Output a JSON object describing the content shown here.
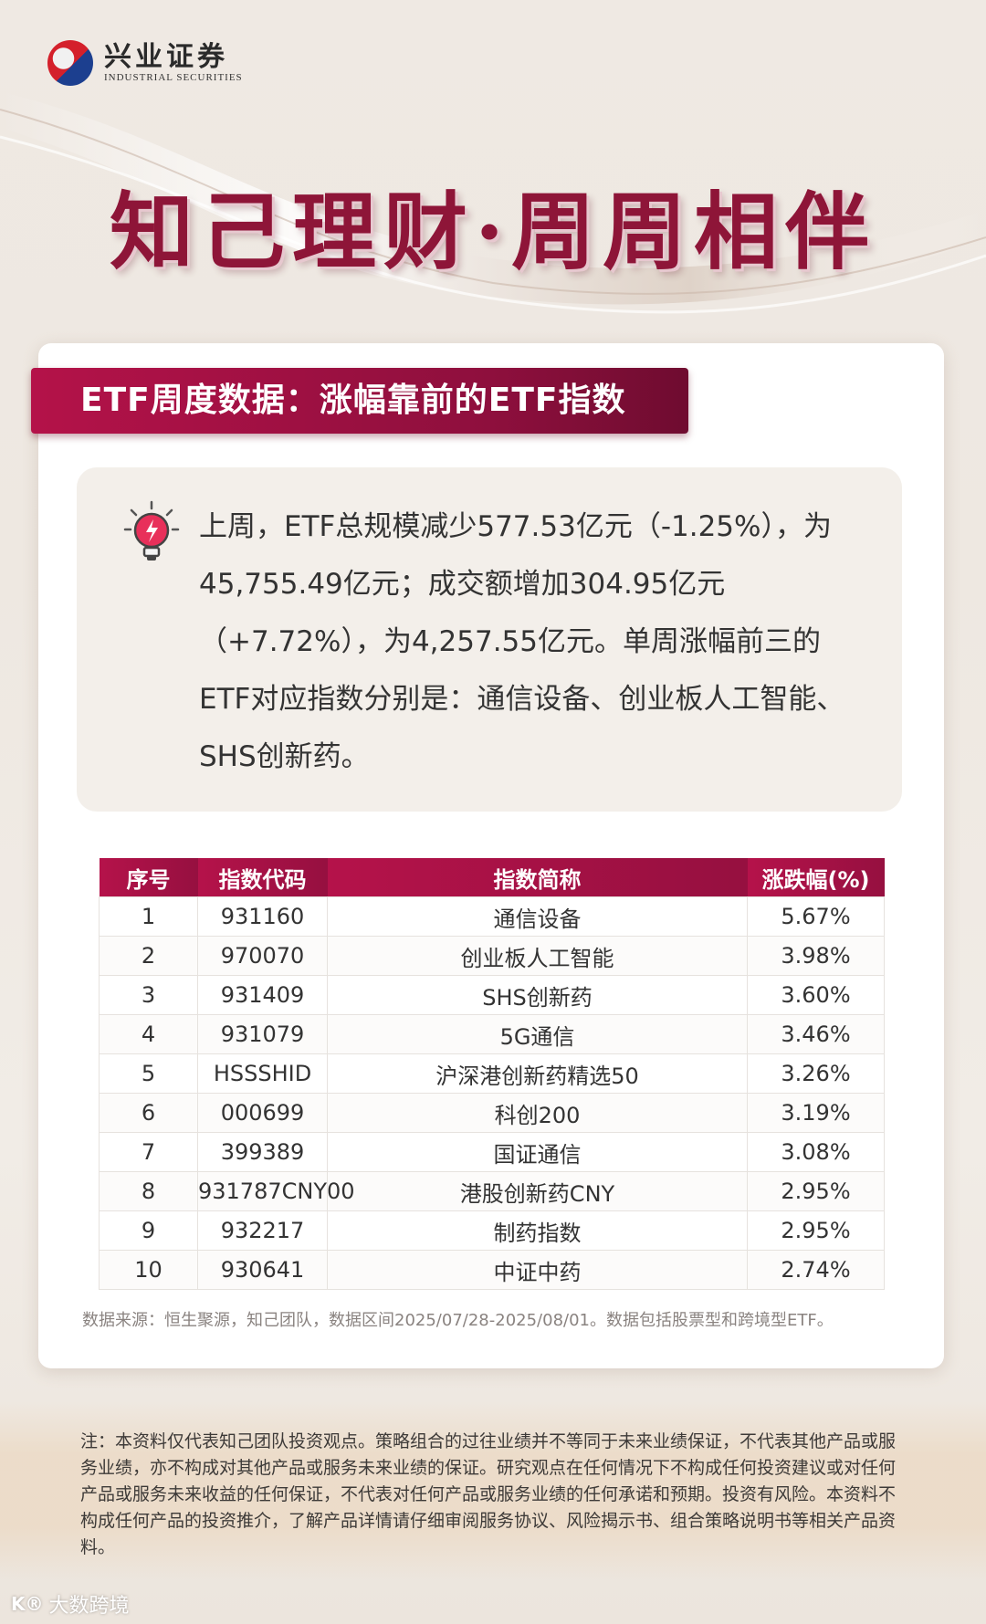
{
  "brand": {
    "name_cn": "兴业证券",
    "name_en": "INDUSTRIAL SECURITIES"
  },
  "headline": "知己理财·周周相伴",
  "banner_title": "ETF周度数据：涨幅靠前的ETF指数",
  "summary": "上周，ETF总规模减少577.53亿元（-1.25%），为45,755.49亿元；成交额增加304.95亿元（+7.72%），为4,257.55亿元。单周涨幅前三的ETF对应指数分别是：通信设备、创业板人工智能、SHS创新药。",
  "table": {
    "headers": [
      "序号",
      "指数代码",
      "指数简称",
      "涨跌幅(%)"
    ],
    "rows": [
      [
        "1",
        "931160",
        "通信设备",
        "5.67%"
      ],
      [
        "2",
        "970070",
        "创业板人工智能",
        "3.98%"
      ],
      [
        "3",
        "931409",
        "SHS创新药",
        "3.60%"
      ],
      [
        "4",
        "931079",
        "5G通信",
        "3.46%"
      ],
      [
        "5",
        "HSSSHID",
        "沪深港创新药精选50",
        "3.26%"
      ],
      [
        "6",
        "000699",
        "科创200",
        "3.19%"
      ],
      [
        "7",
        "399389",
        "国证通信",
        "3.08%"
      ],
      [
        "8",
        "931787CNY00",
        "港股创新药CNY",
        "2.95%"
      ],
      [
        "9",
        "932217",
        "制药指数",
        "2.95%"
      ],
      [
        "10",
        "930641",
        "中证中药",
        "2.74%"
      ]
    ]
  },
  "source": "数据来源：恒生聚源，知己团队，数据区间2025/07/28-2025/08/01。数据包括股票型和跨境型ETF。",
  "disclaimer": "注：本资料仅代表知己团队投资观点。策略组合的过往业绩并不等同于未来业绩保证，不代表其他产品或服务业绩，亦不构成对其他产品或服务未来业绩的保证。研究观点在任何情况下不构成任何投资建议或对任何产品或服务未来收益的任何保证，不代表对任何产品或服务业绩的任何承诺和预期。投资有风险。本资料不构成任何产品的投资推介，了解产品详情请仔细审阅服务协议、风险揭示书、组合策略说明书等相关产品资料。",
  "watermark": {
    "icon": "K®",
    "text": "大数跨境"
  },
  "colors": {
    "primary": "#9c1040",
    "text": "#333333",
    "card": "#ffffff",
    "summary_bg": "#f3efea"
  }
}
